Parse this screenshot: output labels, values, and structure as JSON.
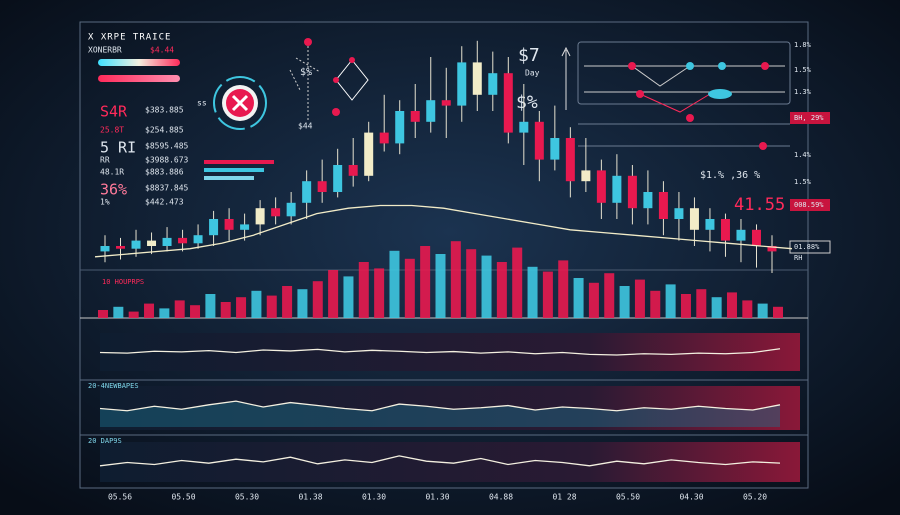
{
  "header": {
    "title": "X XRPE TRAICE",
    "subtitle": "XONERBR",
    "subtitle_value": "$4.44"
  },
  "stats": [
    {
      "label": "S4R",
      "value": "$383.885"
    },
    {
      "label": "25.8T",
      "value": "$254.885"
    },
    {
      "label": "5 RI",
      "value": "$8595.485"
    },
    {
      "label": "RR",
      "value": "$3988.673"
    },
    {
      "label": "48.1R",
      "value": "$883.886"
    },
    {
      "label": "36%",
      "value": "$8837.845"
    },
    {
      "label": "1%",
      "value": "$442.473"
    }
  ],
  "icon_label": "ss",
  "annotations": [
    "$%",
    "$44"
  ],
  "day": {
    "price": "$7",
    "label": "Day",
    "change": "$%"
  },
  "right_readout": {
    "top": "$1.%  ,36 %",
    "value": "41.55"
  },
  "right_axis": [
    "1.8%",
    "1.5%",
    "1.3%",
    "BH, 29%",
    "1.4%",
    "1.5%",
    "008.59%",
    "01.88%",
    "RH"
  ],
  "panels": [
    "10 HOUPRPS",
    "20-4NEWBAPES",
    "20 DAP9S"
  ],
  "x_labels": [
    "05.56",
    "05.50",
    "05.30",
    "01.38",
    "01.30",
    "01.30",
    "04.88",
    "01 28",
    "05.50",
    "04.30",
    "05.20"
  ],
  "candles": {
    "ylim": [
      0,
      100
    ],
    "up_color": "#3ec6e0",
    "down_color": "#e8194f",
    "items": [
      {
        "o": 18,
        "c": 20,
        "h": 24,
        "l": 14
      },
      {
        "o": 20,
        "c": 19,
        "h": 23,
        "l": 15
      },
      {
        "o": 19,
        "c": 22,
        "h": 26,
        "l": 16
      },
      {
        "o": 22,
        "c": 20,
        "h": 25,
        "l": 17
      },
      {
        "o": 20,
        "c": 23,
        "h": 27,
        "l": 18
      },
      {
        "o": 23,
        "c": 21,
        "h": 26,
        "l": 18
      },
      {
        "o": 21,
        "c": 24,
        "h": 28,
        "l": 19
      },
      {
        "o": 24,
        "c": 30,
        "h": 33,
        "l": 20
      },
      {
        "o": 30,
        "c": 26,
        "h": 34,
        "l": 22
      },
      {
        "o": 26,
        "c": 28,
        "h": 32,
        "l": 22
      },
      {
        "o": 28,
        "c": 34,
        "h": 37,
        "l": 24
      },
      {
        "o": 34,
        "c": 31,
        "h": 38,
        "l": 28
      },
      {
        "o": 31,
        "c": 36,
        "h": 40,
        "l": 28
      },
      {
        "o": 36,
        "c": 44,
        "h": 48,
        "l": 30
      },
      {
        "o": 44,
        "c": 40,
        "h": 52,
        "l": 36
      },
      {
        "o": 40,
        "c": 50,
        "h": 56,
        "l": 38
      },
      {
        "o": 50,
        "c": 46,
        "h": 60,
        "l": 42
      },
      {
        "o": 46,
        "c": 62,
        "h": 66,
        "l": 44
      },
      {
        "o": 62,
        "c": 58,
        "h": 76,
        "l": 55
      },
      {
        "o": 58,
        "c": 70,
        "h": 74,
        "l": 54
      },
      {
        "o": 70,
        "c": 66,
        "h": 80,
        "l": 60
      },
      {
        "o": 66,
        "c": 74,
        "h": 90,
        "l": 62
      },
      {
        "o": 74,
        "c": 72,
        "h": 86,
        "l": 60
      },
      {
        "o": 72,
        "c": 88,
        "h": 94,
        "l": 66
      },
      {
        "o": 88,
        "c": 76,
        "h": 96,
        "l": 70
      },
      {
        "o": 76,
        "c": 84,
        "h": 92,
        "l": 70
      },
      {
        "o": 84,
        "c": 62,
        "h": 90,
        "l": 58
      },
      {
        "o": 62,
        "c": 66,
        "h": 80,
        "l": 50
      },
      {
        "o": 66,
        "c": 52,
        "h": 70,
        "l": 44
      },
      {
        "o": 52,
        "c": 60,
        "h": 72,
        "l": 48
      },
      {
        "o": 60,
        "c": 44,
        "h": 64,
        "l": 38
      },
      {
        "o": 44,
        "c": 48,
        "h": 60,
        "l": 40
      },
      {
        "o": 48,
        "c": 36,
        "h": 52,
        "l": 30
      },
      {
        "o": 36,
        "c": 46,
        "h": 54,
        "l": 30
      },
      {
        "o": 46,
        "c": 34,
        "h": 50,
        "l": 28
      },
      {
        "o": 34,
        "c": 40,
        "h": 48,
        "l": 28
      },
      {
        "o": 40,
        "c": 30,
        "h": 44,
        "l": 24
      },
      {
        "o": 30,
        "c": 34,
        "h": 40,
        "l": 22
      },
      {
        "o": 34,
        "c": 26,
        "h": 38,
        "l": 20
      },
      {
        "o": 26,
        "c": 30,
        "h": 34,
        "l": 18
      },
      {
        "o": 30,
        "c": 22,
        "h": 32,
        "l": 16
      },
      {
        "o": 22,
        "c": 26,
        "h": 30,
        "l": 14
      },
      {
        "o": 26,
        "c": 20,
        "h": 28,
        "l": 12
      },
      {
        "o": 20,
        "c": 18,
        "h": 24,
        "l": 10
      }
    ],
    "ma": [
      16,
      17,
      18,
      19,
      21,
      24,
      28,
      32,
      34,
      35,
      35,
      34,
      32,
      30,
      28,
      26,
      25,
      24,
      23,
      22,
      21,
      20,
      19
    ]
  },
  "volume": {
    "ylim": [
      0,
      100
    ],
    "values": [
      10,
      14,
      8,
      18,
      12,
      22,
      16,
      30,
      20,
      26,
      34,
      28,
      40,
      36,
      46,
      60,
      52,
      70,
      62,
      84,
      74,
      90,
      80,
      96,
      86,
      78,
      70,
      88,
      64,
      58,
      72,
      50,
      44,
      56,
      40,
      48,
      34,
      42,
      30,
      36,
      26,
      32,
      22,
      18,
      14
    ]
  },
  "lines": [
    {
      "ylim": [
        0,
        100
      ],
      "values": [
        50,
        48,
        54,
        52,
        56,
        50,
        58,
        55,
        60,
        52,
        57,
        54,
        50,
        53,
        48,
        52,
        46,
        50,
        44,
        42,
        46,
        44,
        48,
        46,
        50,
        62
      ]
    },
    {
      "ylim": [
        0,
        100
      ],
      "values": [
        50,
        44,
        56,
        48,
        60,
        70,
        54,
        66,
        58,
        50,
        44,
        62,
        56,
        48,
        52,
        58,
        46,
        54,
        50,
        44,
        52,
        48,
        56,
        50,
        46,
        60
      ]
    },
    {
      "ylim": [
        0,
        100
      ],
      "values": [
        40,
        50,
        44,
        56,
        48,
        60,
        52,
        66,
        46,
        58,
        50,
        70,
        54,
        48,
        62,
        44,
        56,
        50,
        40,
        54,
        46,
        58,
        50,
        44,
        52,
        48
      ]
    }
  ]
}
